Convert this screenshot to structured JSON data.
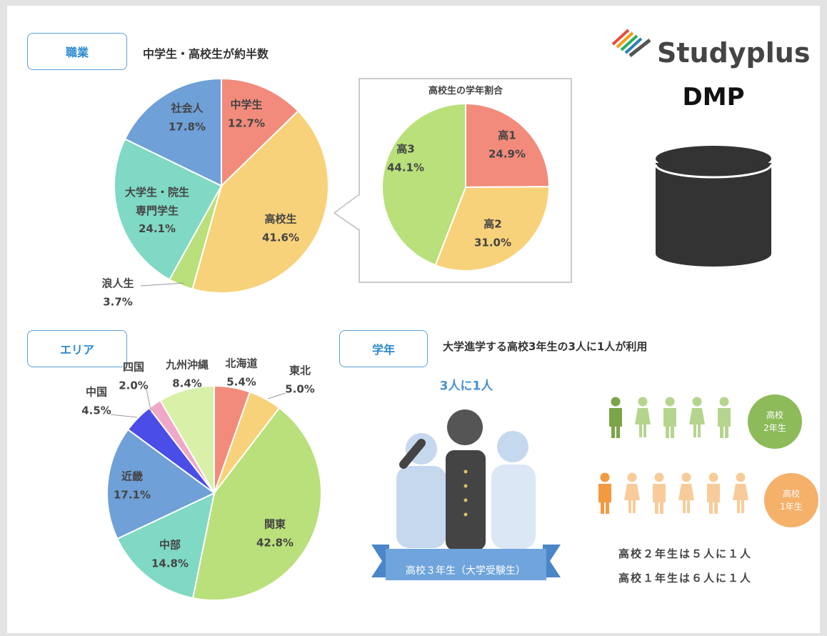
{
  "brand": {
    "logo": "Studyplus",
    "subtitle": "DMP"
  },
  "sections": {
    "occupation": {
      "tag": "職業"
    },
    "area": {
      "tag": "エリア"
    },
    "grade": {
      "tag": "学年",
      "heading": "大学進学する高校3年生の3人に1人が利用",
      "ratio": "3人に1人",
      "ribbon": "高校３年生（大学受験生）",
      "badge2": "高校\n2年生",
      "badge1": "高校\n1年生",
      "note2": "高校２年生は５人に１人",
      "note1": "高校１年生は６人に１人"
    }
  },
  "chart_data": [
    {
      "type": "pie",
      "title": "中学生・高校生が約半数",
      "categories": [
        "中学生",
        "高校生",
        "浪人生",
        "大学生・院生\n専門学生",
        "社会人"
      ],
      "values": [
        12.7,
        41.6,
        3.7,
        24.1,
        17.8
      ],
      "value_labels": [
        "12.7%",
        "41.6%",
        "3.7%",
        "24.1%",
        "17.8%"
      ],
      "colors": [
        "#f28b7b",
        "#f8d27a",
        "#b9e07a",
        "#7fd9c4",
        "#6fa0d8"
      ]
    },
    {
      "type": "pie",
      "title": "高校生の学年割合",
      "categories": [
        "高1",
        "高2",
        "高3"
      ],
      "values": [
        24.9,
        31.0,
        44.1
      ],
      "value_labels": [
        "24.9%",
        "31.0%",
        "44.1%"
      ],
      "colors": [
        "#f28b7b",
        "#f8d27a",
        "#b9e07a"
      ]
    },
    {
      "type": "pie",
      "categories": [
        "北海道",
        "東北",
        "関東",
        "中部",
        "近畿",
        "中国",
        "四国",
        "九州沖縄"
      ],
      "values": [
        5.4,
        5.0,
        42.8,
        14.8,
        17.1,
        4.5,
        2.0,
        8.4
      ],
      "value_labels": [
        "5.4%",
        "5.0%",
        "42.8%",
        "14.8%",
        "17.1%",
        "4.5%",
        "2.0%",
        "8.4%"
      ],
      "colors": [
        "#f28b7b",
        "#f8d27a",
        "#b9e07a",
        "#7fd9c4",
        "#6fa0d8",
        "#4b4de8",
        "#f0a8c8",
        "#d8f0a8"
      ]
    }
  ]
}
